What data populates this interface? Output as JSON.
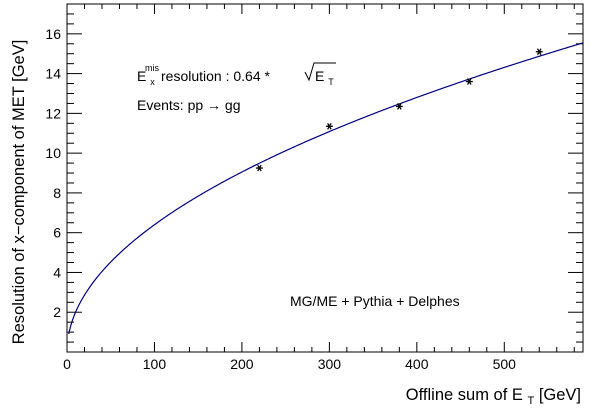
{
  "chart_data": {
    "type": "scatter",
    "xlabel_main": "Offline sum of E",
    "xlabel_sub": "T",
    "xlabel_unit": " [GeV]",
    "ylabel": "Resolution of x−component  of MET [GeV]",
    "xlim": [
      0,
      590
    ],
    "ylim": [
      0,
      17.5
    ],
    "x_ticks": [
      0,
      100,
      200,
      300,
      400,
      500
    ],
    "y_ticks": [
      2,
      4,
      6,
      8,
      10,
      12,
      14,
      16
    ],
    "grid": false,
    "series": [
      {
        "x": [
          220,
          300,
          380,
          460,
          540
        ],
        "y": [
          9.25,
          11.35,
          12.35,
          13.6,
          15.1
        ],
        "marker": "asterisk"
      }
    ],
    "fit": {
      "coefficient": 0.64,
      "form": "sqrt",
      "color": "#000080"
    },
    "annotations": {
      "resolution_prefix": "E",
      "resolution_sub": "x",
      "resolution_sup": "mis",
      "resolution_text": " resolution : 0.64 *",
      "resolution_radicand": "E",
      "resolution_radicand_sub": "T",
      "events": "Events: pp → gg",
      "generator": "MG/ME + Pythia + Delphes"
    }
  }
}
